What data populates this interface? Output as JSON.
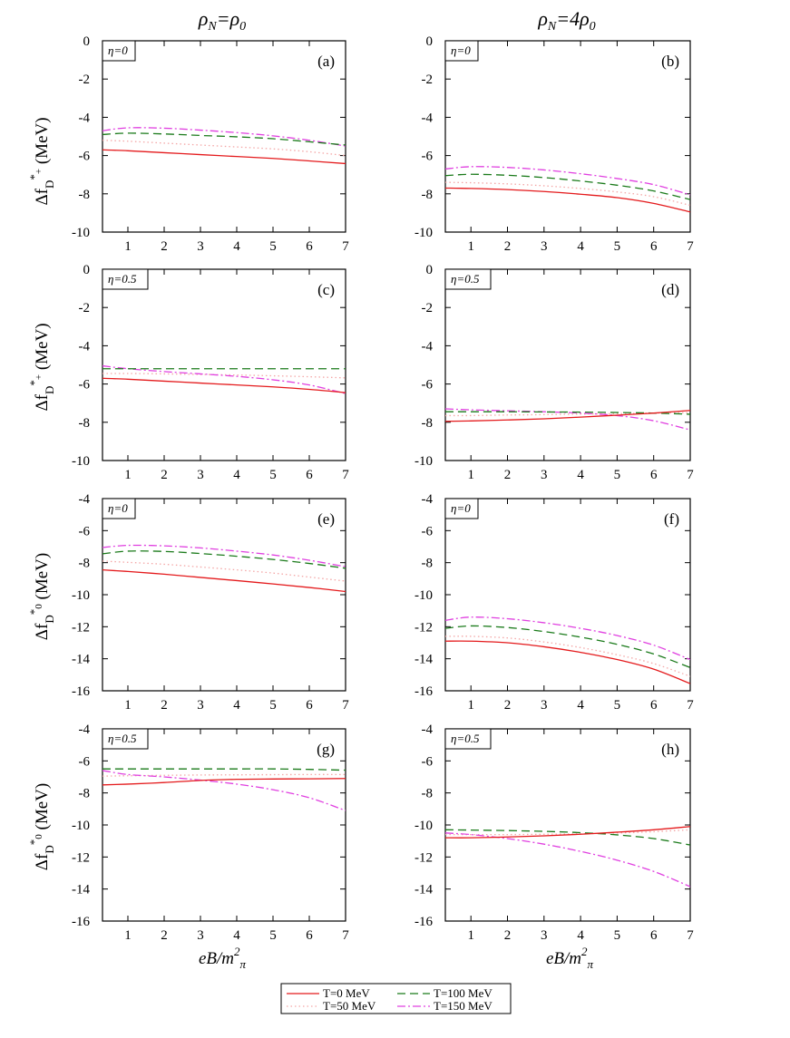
{
  "columns": [
    {
      "rho": "ρ",
      "sub": "N",
      "eq": "=ρ",
      "sub2": "0"
    },
    {
      "rho": "ρ",
      "sub": "N",
      "eq": "=4ρ",
      "sub2": "0"
    }
  ],
  "xlabel": {
    "main": "eB/m",
    "sup": "2",
    "sub": "π"
  },
  "ylabels": {
    "dplus": {
      "delta": "Δf",
      "sub": "D",
      "sup1": "*",
      "sup2": "+",
      "unit": " (MeV)"
    },
    "dzero": {
      "delta": "Δf",
      "sub": "D",
      "sup1": "*",
      "sup2": "0",
      "unit": " (MeV)"
    }
  },
  "legend": [
    {
      "label": "T=0 MeV",
      "color": "#e41a1c",
      "dash": ""
    },
    {
      "label": "T=100 MeV",
      "color": "#1a7a1a",
      "dash": "9,5"
    },
    {
      "label": "T=50 MeV",
      "color": "#f4a6a6",
      "dash": "1.5,3"
    },
    {
      "label": "T=150 MeV",
      "color": "#e040e0",
      "dash": "9,3,2,3"
    }
  ],
  "chart_data": [
    {
      "type": "line",
      "panel": "(a)",
      "eta": "η=0",
      "x": [
        0.3,
        1,
        2,
        3,
        4,
        5,
        6,
        7
      ],
      "ylim": [
        -10,
        0
      ],
      "yticks": [
        0,
        -2,
        -4,
        -6,
        -8,
        -10
      ],
      "xticks": [
        1,
        2,
        3,
        4,
        5,
        6,
        7
      ],
      "series": [
        {
          "name": "T=0 MeV",
          "values": [
            -5.7,
            -5.75,
            -5.85,
            -5.95,
            -6.05,
            -6.15,
            -6.28,
            -6.42
          ]
        },
        {
          "name": "T=50 MeV",
          "values": [
            -5.2,
            -5.25,
            -5.35,
            -5.45,
            -5.55,
            -5.65,
            -5.8,
            -6.0
          ]
        },
        {
          "name": "T=100 MeV",
          "values": [
            -4.9,
            -4.83,
            -4.87,
            -4.95,
            -5.02,
            -5.12,
            -5.28,
            -5.45
          ]
        },
        {
          "name": "T=150 MeV",
          "values": [
            -4.7,
            -4.55,
            -4.57,
            -4.67,
            -4.8,
            -4.97,
            -5.2,
            -5.5
          ]
        }
      ]
    },
    {
      "type": "line",
      "panel": "(b)",
      "eta": "η=0",
      "x": [
        0.3,
        1,
        2,
        3,
        4,
        5,
        6,
        7
      ],
      "ylim": [
        -10,
        0
      ],
      "yticks": [
        0,
        -2,
        -4,
        -6,
        -8,
        -10
      ],
      "xticks": [
        1,
        2,
        3,
        4,
        5,
        6,
        7
      ],
      "series": [
        {
          "name": "T=0 MeV",
          "values": [
            -7.7,
            -7.72,
            -7.78,
            -7.88,
            -8.02,
            -8.2,
            -8.5,
            -8.95
          ]
        },
        {
          "name": "T=50 MeV",
          "values": [
            -7.4,
            -7.42,
            -7.48,
            -7.58,
            -7.72,
            -7.9,
            -8.15,
            -8.6
          ]
        },
        {
          "name": "T=100 MeV",
          "values": [
            -7.05,
            -6.98,
            -7.03,
            -7.15,
            -7.33,
            -7.55,
            -7.85,
            -8.3
          ]
        },
        {
          "name": "T=150 MeV",
          "values": [
            -6.7,
            -6.58,
            -6.62,
            -6.75,
            -6.95,
            -7.2,
            -7.52,
            -8.05
          ]
        }
      ]
    },
    {
      "type": "line",
      "panel": "(c)",
      "eta": "η=0.5",
      "x": [
        0.3,
        1,
        2,
        3,
        4,
        5,
        6,
        7
      ],
      "ylim": [
        -10,
        0
      ],
      "yticks": [
        0,
        -2,
        -4,
        -6,
        -8,
        -10
      ],
      "xticks": [
        1,
        2,
        3,
        4,
        5,
        6,
        7
      ],
      "series": [
        {
          "name": "T=0 MeV",
          "values": [
            -5.7,
            -5.75,
            -5.85,
            -5.95,
            -6.05,
            -6.15,
            -6.28,
            -6.45
          ]
        },
        {
          "name": "T=50 MeV",
          "values": [
            -5.45,
            -5.45,
            -5.47,
            -5.5,
            -5.53,
            -5.57,
            -5.62,
            -5.68
          ]
        },
        {
          "name": "T=100 MeV",
          "values": [
            -5.2,
            -5.2,
            -5.2,
            -5.2,
            -5.2,
            -5.2,
            -5.2,
            -5.2
          ]
        },
        {
          "name": "T=150 MeV",
          "values": [
            -5.05,
            -5.2,
            -5.35,
            -5.47,
            -5.6,
            -5.78,
            -6.05,
            -6.5
          ]
        }
      ]
    },
    {
      "type": "line",
      "panel": "(d)",
      "eta": "η=0.5",
      "x": [
        0.3,
        1,
        2,
        3,
        4,
        5,
        6,
        7
      ],
      "ylim": [
        -10,
        0
      ],
      "yticks": [
        0,
        -2,
        -4,
        -6,
        -8,
        -10
      ],
      "xticks": [
        1,
        2,
        3,
        4,
        5,
        6,
        7
      ],
      "series": [
        {
          "name": "T=0 MeV",
          "values": [
            -7.95,
            -7.93,
            -7.88,
            -7.82,
            -7.73,
            -7.63,
            -7.52,
            -7.38
          ]
        },
        {
          "name": "T=50 MeV",
          "values": [
            -7.65,
            -7.65,
            -7.62,
            -7.6,
            -7.57,
            -7.55,
            -7.52,
            -7.5
          ]
        },
        {
          "name": "T=100 MeV",
          "values": [
            -7.45,
            -7.45,
            -7.45,
            -7.46,
            -7.47,
            -7.49,
            -7.52,
            -7.58
          ]
        },
        {
          "name": "T=150 MeV",
          "values": [
            -7.3,
            -7.35,
            -7.4,
            -7.45,
            -7.52,
            -7.65,
            -7.92,
            -8.4
          ]
        }
      ]
    },
    {
      "type": "line",
      "panel": "(e)",
      "eta": "η=0",
      "x": [
        0.3,
        1,
        2,
        3,
        4,
        5,
        6,
        7
      ],
      "ylim": [
        -16,
        -4
      ],
      "yticks": [
        -4,
        -6,
        -8,
        -10,
        -12,
        -14,
        -16
      ],
      "xticks": [
        1,
        2,
        3,
        4,
        5,
        6,
        7
      ],
      "series": [
        {
          "name": "T=0 MeV",
          "values": [
            -8.45,
            -8.55,
            -8.72,
            -8.92,
            -9.12,
            -9.33,
            -9.55,
            -9.8
          ]
        },
        {
          "name": "T=50 MeV",
          "values": [
            -7.9,
            -7.98,
            -8.1,
            -8.27,
            -8.45,
            -8.65,
            -8.9,
            -9.15
          ]
        },
        {
          "name": "T=100 MeV",
          "values": [
            -7.45,
            -7.28,
            -7.3,
            -7.43,
            -7.6,
            -7.8,
            -8.05,
            -8.35
          ]
        },
        {
          "name": "T=150 MeV",
          "values": [
            -7.05,
            -6.92,
            -6.95,
            -7.08,
            -7.28,
            -7.52,
            -7.85,
            -8.25
          ]
        }
      ]
    },
    {
      "type": "line",
      "panel": "(f)",
      "eta": "η=0",
      "x": [
        0.3,
        1,
        2,
        3,
        4,
        5,
        6,
        7
      ],
      "ylim": [
        -16,
        -4
      ],
      "yticks": [
        -4,
        -6,
        -8,
        -10,
        -12,
        -14,
        -16
      ],
      "xticks": [
        1,
        2,
        3,
        4,
        5,
        6,
        7
      ],
      "series": [
        {
          "name": "T=0 MeV",
          "values": [
            -12.9,
            -12.9,
            -13.0,
            -13.25,
            -13.6,
            -14.05,
            -14.65,
            -15.55
          ]
        },
        {
          "name": "T=50 MeV",
          "values": [
            -12.6,
            -12.6,
            -12.7,
            -12.95,
            -13.3,
            -13.75,
            -14.3,
            -15.1
          ]
        },
        {
          "name": "T=100 MeV",
          "values": [
            -12.1,
            -11.95,
            -12.05,
            -12.3,
            -12.65,
            -13.1,
            -13.7,
            -14.55
          ]
        },
        {
          "name": "T=150 MeV",
          "values": [
            -11.6,
            -11.4,
            -11.5,
            -11.75,
            -12.1,
            -12.55,
            -13.15,
            -14.05
          ]
        }
      ]
    },
    {
      "type": "line",
      "panel": "(g)",
      "eta": "η=0.5",
      "x": [
        0.3,
        1,
        2,
        3,
        4,
        5,
        6,
        7
      ],
      "ylim": [
        -16,
        -4
      ],
      "yticks": [
        -4,
        -6,
        -8,
        -10,
        -12,
        -14,
        -16
      ],
      "xticks": [
        1,
        2,
        3,
        4,
        5,
        6,
        7
      ],
      "series": [
        {
          "name": "T=0 MeV",
          "values": [
            -7.5,
            -7.45,
            -7.35,
            -7.22,
            -7.15,
            -7.13,
            -7.12,
            -7.1
          ]
        },
        {
          "name": "T=50 MeV",
          "values": [
            -6.95,
            -6.93,
            -6.9,
            -6.88,
            -6.87,
            -6.86,
            -6.85,
            -6.85
          ]
        },
        {
          "name": "T=100 MeV",
          "values": [
            -6.5,
            -6.5,
            -6.5,
            -6.5,
            -6.5,
            -6.5,
            -6.53,
            -6.58
          ]
        },
        {
          "name": "T=150 MeV",
          "values": [
            -6.6,
            -6.85,
            -7.0,
            -7.2,
            -7.45,
            -7.8,
            -8.3,
            -9.1
          ]
        }
      ]
    },
    {
      "type": "line",
      "panel": "(h)",
      "eta": "η=0.5",
      "x": [
        0.3,
        1,
        2,
        3,
        4,
        5,
        6,
        7
      ],
      "ylim": [
        -16,
        -4
      ],
      "yticks": [
        -4,
        -6,
        -8,
        -10,
        -12,
        -14,
        -16
      ],
      "xticks": [
        1,
        2,
        3,
        4,
        5,
        6,
        7
      ],
      "series": [
        {
          "name": "T=0 MeV",
          "values": [
            -10.8,
            -10.8,
            -10.75,
            -10.68,
            -10.58,
            -10.45,
            -10.3,
            -10.1
          ]
        },
        {
          "name": "T=50 MeV",
          "values": [
            -10.6,
            -10.6,
            -10.6,
            -10.58,
            -10.55,
            -10.5,
            -10.42,
            -10.3
          ]
        },
        {
          "name": "T=100 MeV",
          "values": [
            -10.3,
            -10.32,
            -10.35,
            -10.4,
            -10.48,
            -10.62,
            -10.85,
            -11.25
          ]
        },
        {
          "name": "T=150 MeV",
          "values": [
            -10.5,
            -10.6,
            -10.85,
            -11.2,
            -11.65,
            -12.2,
            -12.9,
            -13.85
          ]
        }
      ]
    }
  ]
}
